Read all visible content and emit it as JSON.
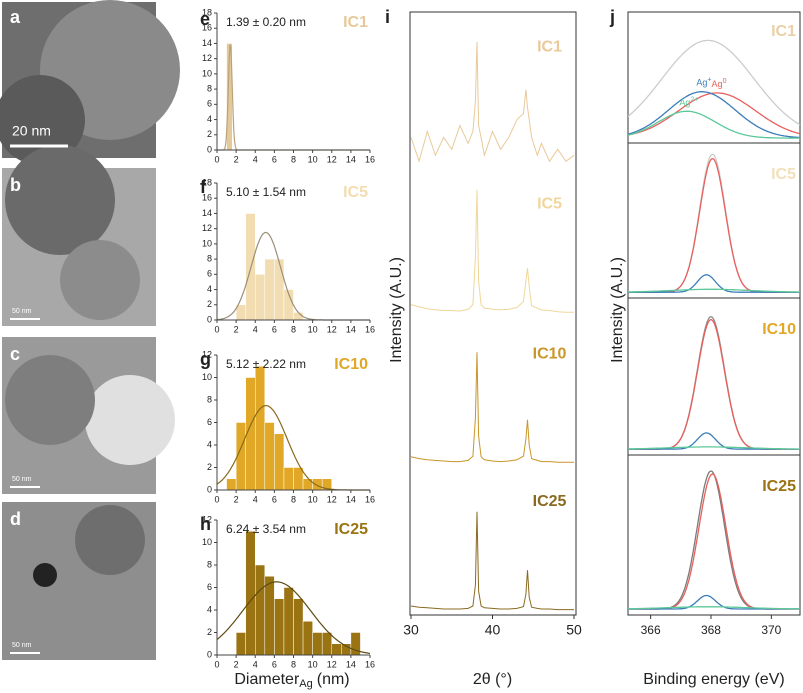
{
  "panel_labels": [
    "a",
    "b",
    "c",
    "d",
    "e",
    "f",
    "g",
    "h",
    "i",
    "j"
  ],
  "tem_scale_labels": [
    "20 nm",
    "50 nm",
    "50 nm",
    "50 nm"
  ],
  "chart_data": [
    {
      "type": "histogram",
      "sample": "IC1",
      "annotation": "1.39 ± 0.20 nm",
      "color": "#e6c99a",
      "fit_color": "#b8a27a",
      "bins": [
        1.0,
        1.6
      ],
      "counts": [
        14
      ],
      "fit_mean": 1.39,
      "fit_sd": 0.2,
      "fit_peak": 14,
      "xlim": [
        0,
        16
      ],
      "xticks": [
        0,
        2,
        4,
        6,
        8,
        10,
        12,
        14,
        16
      ],
      "ylim": [
        0,
        18
      ],
      "yticks": [
        0,
        2,
        4,
        6,
        8,
        10,
        12,
        14,
        16,
        18
      ]
    },
    {
      "type": "histogram",
      "sample": "IC5",
      "annotation": "5.10 ± 1.54 nm",
      "color": "#f2ddb2",
      "fit_color": "#9a8f7a",
      "bins": [
        2,
        3,
        4,
        5,
        6,
        7,
        8,
        9
      ],
      "counts": [
        2,
        14,
        6,
        8,
        8,
        4,
        1
      ],
      "fit_mean": 5.1,
      "fit_sd": 1.54,
      "fit_peak": 11.5,
      "xlim": [
        0,
        16
      ],
      "xticks": [
        0,
        2,
        4,
        6,
        8,
        10,
        12,
        14,
        16
      ],
      "ylim": [
        0,
        18
      ],
      "yticks": [
        0,
        2,
        4,
        6,
        8,
        10,
        12,
        14,
        16,
        18
      ]
    },
    {
      "type": "histogram",
      "sample": "IC10",
      "annotation": "5.12 ± 2.22 nm",
      "color": "#e0a826",
      "fit_color": "#8a6a1a",
      "bins": [
        1,
        2,
        3,
        4,
        5,
        6,
        7,
        8,
        9,
        10,
        11,
        12
      ],
      "counts": [
        1,
        6,
        10,
        11,
        6,
        5,
        2,
        2,
        1,
        1,
        1
      ],
      "fit_mean": 5.12,
      "fit_sd": 2.22,
      "fit_peak": 7.5,
      "xlim": [
        0,
        16
      ],
      "xticks": [
        0,
        2,
        4,
        6,
        8,
        10,
        12,
        14,
        16
      ],
      "ylim": [
        0,
        12
      ],
      "yticks": [
        0,
        2,
        4,
        6,
        8,
        10,
        12
      ]
    },
    {
      "type": "histogram",
      "sample": "IC25",
      "annotation": "6.24 ± 3.54 nm",
      "color": "#9a7312",
      "fit_color": "#5e4a10",
      "bins": [
        2,
        3,
        4,
        5,
        6,
        7,
        8,
        9,
        10,
        11,
        12,
        13,
        14,
        15
      ],
      "counts": [
        2,
        11,
        8,
        7,
        5,
        6,
        5,
        3,
        2,
        2,
        1,
        1,
        2
      ],
      "fit_mean": 6.24,
      "fit_sd": 3.54,
      "fit_peak": 6.5,
      "xlim": [
        0,
        16
      ],
      "xticks": [
        0,
        2,
        4,
        6,
        8,
        10,
        12,
        14,
        16
      ],
      "ylim": [
        0,
        12
      ],
      "yticks": [
        0,
        2,
        4,
        6,
        8,
        10,
        12
      ],
      "xlabel": "Diameter",
      "xlabel_sub": "Ag",
      "xlabel_unit": "(nm)"
    },
    {
      "type": "line",
      "xlabel": "2θ (°)",
      "ylabel": "Intensity (A.U.)",
      "x": [
        30,
        31,
        32,
        33,
        34,
        35,
        36,
        37,
        37.6,
        37.9,
        38.1,
        38.3,
        38.6,
        39,
        40,
        41,
        42,
        43,
        43.8,
        44.1,
        44.3,
        44.5,
        44.8,
        45.5,
        46,
        47,
        48,
        49,
        50
      ],
      "xlim": [
        30,
        50
      ],
      "xticks": [
        30,
        40,
        50
      ],
      "ylim": [
        0,
        100
      ],
      "series": [
        {
          "name": "IC1",
          "color": "#e9c99a",
          "values": [
            80,
            76,
            81,
            77,
            80,
            78,
            82,
            79,
            81,
            86,
            96,
            82,
            80,
            77,
            81,
            78,
            80,
            83,
            84,
            88,
            85,
            83,
            80,
            77,
            79,
            76,
            78,
            76,
            77
          ]
        },
        {
          "name": "IC5",
          "color": "#f0d69a",
          "values": [
            52,
            51.6,
            51.3,
            51.1,
            51,
            51,
            50.9,
            51.2,
            52,
            60,
            71.2,
            56,
            52,
            51.4,
            51.2,
            51.1,
            51.2,
            51.5,
            52.5,
            56,
            58.1,
            55,
            51.8,
            51.4,
            51.1,
            51,
            50.8,
            50.7,
            50.7
          ]
        },
        {
          "name": "IC10",
          "color": "#c9962a",
          "values": [
            26.5,
            26.2,
            26,
            25.9,
            25.8,
            25.7,
            25.7,
            25.9,
            26.6,
            33,
            44,
            30,
            26.5,
            26,
            25.8,
            25.7,
            25.8,
            26,
            26.6,
            29.5,
            32.7,
            28.5,
            26.2,
            25.9,
            25.7,
            25.7,
            25.6,
            25.6,
            25.6
          ]
        },
        {
          "name": "IC25",
          "color": "#8a6a20",
          "values": [
            1.5,
            1.3,
            1.2,
            1.1,
            1.0,
            1.0,
            1.0,
            1.1,
            1.5,
            5,
            17.3,
            4,
            1.5,
            1.2,
            1.1,
            1.0,
            1.0,
            1.1,
            1.4,
            3.5,
            7.5,
            3,
            1.3,
            1.1,
            1.0,
            1.0,
            0.9,
            0.9,
            0.9
          ]
        }
      ]
    },
    {
      "type": "xps",
      "xlabel": "Binding energy (eV)",
      "ylabel": "Intensity (A.U.)",
      "xlim": [
        365.25,
        370.95
      ],
      "xticks": [
        366,
        368,
        370
      ],
      "ylim": [
        -4,
        100
      ],
      "panels": [
        {
          "sample": "IC1",
          "color": "#ead0a8",
          "components": [
            {
              "color": "#cccccc",
              "center": 367.9,
              "fwhm": 3.6,
              "height": 80
            },
            {
              "name": "Ag",
              "charge": "0",
              "color": "#e8605c",
              "center": 368.2,
              "fwhm": 3.0,
              "height": 37
            },
            {
              "name": "Ag",
              "charge": "+",
              "color": "#3b7db8",
              "center": 367.7,
              "fwhm": 2.6,
              "height": 38
            },
            {
              "name": "Ag",
              "charge": "2+",
              "color": "#5cc89a",
              "center": 367.2,
              "fwhm": 2.2,
              "height": 22
            }
          ]
        },
        {
          "sample": "IC5",
          "color": "#f2e0bb",
          "components": [
            {
              "color": "#cccccc",
              "center": 368.05,
              "fwhm": 1.0,
              "height": 95
            },
            {
              "color": "#e8605c",
              "center": 368.05,
              "fwhm": 1.0,
              "height": 92
            },
            {
              "color": "#3b7db8",
              "center": 367.85,
              "fwhm": 0.7,
              "height": 12
            },
            {
              "color": "#5cc89a",
              "center": 368.0,
              "fwhm": 3.0,
              "height": 2
            }
          ]
        },
        {
          "sample": "IC10",
          "color": "#e0a826",
          "components": [
            {
              "color": "#8c8c8c",
              "center": 368.0,
              "fwhm": 1.05,
              "height": 90
            },
            {
              "color": "#e8605c",
              "center": 368.0,
              "fwhm": 1.05,
              "height": 88
            },
            {
              "color": "#3b7db8",
              "center": 367.85,
              "fwhm": 0.7,
              "height": 11
            },
            {
              "color": "#5cc89a",
              "center": 367.9,
              "fwhm": 3.0,
              "height": 1.5
            }
          ]
        },
        {
          "sample": "IC25",
          "color": "#9a7312",
          "components": [
            {
              "color": "#7a7a7a",
              "center": 368.0,
              "fwhm": 1.05,
              "height": 92
            },
            {
              "color": "#e8605c",
              "center": 368.05,
              "fwhm": 1.05,
              "height": 90
            },
            {
              "color": "#3b7db8",
              "center": 367.85,
              "fwhm": 0.7,
              "height": 9
            },
            {
              "color": "#5cc89a",
              "center": 367.9,
              "fwhm": 3.0,
              "height": 1.5
            }
          ]
        }
      ]
    }
  ]
}
